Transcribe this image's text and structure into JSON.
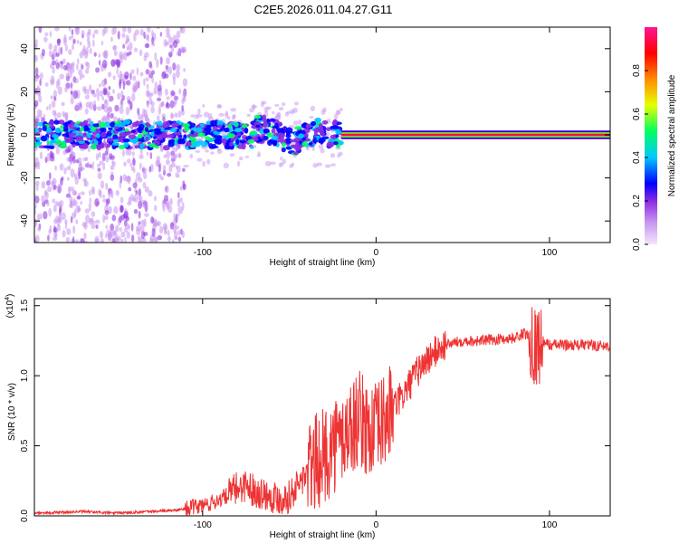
{
  "title": "C2E5.2026.011.04.27.G11",
  "chart_data": [
    {
      "type": "heatmap",
      "xlabel": "Height of straight line (km)",
      "ylabel": "Frequency (Hz)",
      "xlim": [
        -197,
        135
      ],
      "ylim": [
        -50,
        50
      ],
      "xticks": [
        -100,
        0,
        100
      ],
      "yticks": [
        -40,
        -20,
        0,
        20,
        40
      ],
      "colorbar": {
        "label": "Normalized spectral amplitude",
        "range": [
          0,
          1
        ],
        "ticks": [
          0.0,
          0.2,
          0.4,
          0.6,
          0.8
        ],
        "tick_labels": [
          "0.0",
          "0.2",
          "0.4",
          "0.6",
          "0.8"
        ],
        "colors": [
          "#f4e6fa",
          "#c896f0",
          "#8a2be2",
          "#0000ff",
          "#00c8ff",
          "#00ff60",
          "#e6ff00",
          "#ff8c00",
          "#ff0000",
          "#ff1493"
        ]
      },
      "ridge": {
        "description_frequency_hz": 0,
        "strong_above_km": -20,
        "scattered_below_km": -110
      }
    },
    {
      "type": "line",
      "xlabel": "Height of straight line (km)",
      "ylabel": "SNR (10 * v/v)",
      "y_scale_label": "(x10",
      "y_scale_exp": "4",
      "xlim": [
        -197,
        135
      ],
      "ylim": [
        0,
        1.55
      ],
      "xticks": [
        -100,
        0,
        100
      ],
      "yticks": [
        0.0,
        0.5,
        1.0,
        1.5
      ],
      "ytick_labels": [
        "0.0",
        "0.5",
        "1.0",
        "1.5"
      ],
      "series": [
        {
          "name": "SNR",
          "color": "#ee3333",
          "x": [
            -197,
            -170,
            -150,
            -130,
            -115,
            -105,
            -95,
            -90,
            -85,
            -80,
            -75,
            -70,
            -65,
            -60,
            -55,
            -50,
            -45,
            -40,
            -35,
            -30,
            -25,
            -20,
            -15,
            -10,
            -5,
            0,
            5,
            10,
            15,
            20,
            25,
            30,
            35,
            40,
            50,
            60,
            70,
            80,
            85,
            90,
            92,
            95,
            100,
            110,
            120,
            135
          ],
          "values": [
            0.02,
            0.03,
            0.02,
            0.03,
            0.04,
            0.06,
            0.09,
            0.12,
            0.15,
            0.2,
            0.22,
            0.18,
            0.16,
            0.14,
            0.12,
            0.14,
            0.22,
            0.3,
            0.38,
            0.42,
            0.5,
            0.55,
            0.62,
            0.7,
            0.62,
            0.6,
            0.68,
            0.78,
            0.85,
            0.95,
            1.05,
            1.12,
            1.18,
            1.22,
            1.25,
            1.25,
            1.26,
            1.27,
            1.3,
            1.28,
            1.2,
            1.25,
            1.22,
            1.22,
            1.22,
            1.21
          ]
        }
      ]
    }
  ]
}
